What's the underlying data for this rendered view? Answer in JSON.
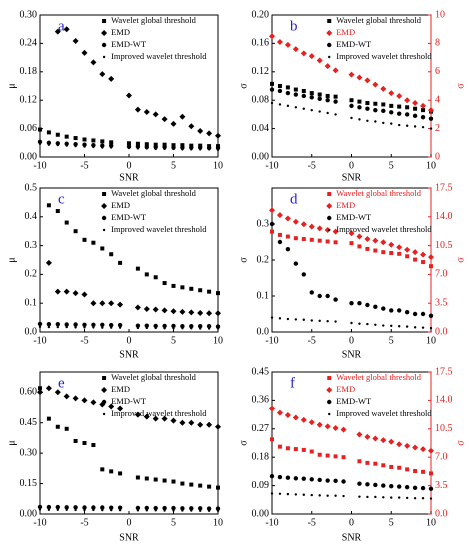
{
  "chart_data": [
    {
      "type": "scatter",
      "label": "a",
      "x_label": "SNR",
      "y_label": "μ",
      "xlim": [
        -10,
        10
      ],
      "xticks": [
        -10,
        -5,
        0,
        5,
        10
      ],
      "ylim": [
        0,
        0.3
      ],
      "yticks": [
        {
          "value": 0,
          "label": "0.00"
        },
        {
          "value": 0.06,
          "label": "0.06"
        },
        {
          "value": 0.12,
          "label": "0.12"
        },
        {
          "value": 0.18,
          "label": "0.18"
        },
        {
          "value": 0.24,
          "label": "0.24"
        },
        {
          "value": 0.3,
          "label": "0.30"
        }
      ],
      "x": [
        -10,
        -9,
        -8,
        -7,
        -6,
        -5,
        -4,
        -3,
        -2,
        -1,
        0,
        1,
        2,
        3,
        4,
        5,
        6,
        7,
        8,
        9,
        10
      ],
      "series": [
        {
          "name": "Wavelet global threshold",
          "color": "#000000",
          "marker": "square",
          "values": [
            0.058,
            0.052,
            0.047,
            0.043,
            0.04,
            0.037,
            0.035,
            0.033,
            0.031,
            null,
            0.029,
            0.028,
            0.027,
            0.026,
            0.026,
            0.025,
            0.025,
            0.024,
            0.024,
            0.023,
            0.023
          ]
        },
        {
          "name": "EMD",
          "color": "#000000",
          "marker": "diamond",
          "values": [
            null,
            null,
            0.265,
            0.27,
            0.245,
            0.22,
            0.2,
            0.175,
            0.165,
            null,
            0.13,
            0.1,
            0.095,
            0.09,
            0.08,
            0.07,
            0.085,
            0.065,
            0.055,
            0.05,
            0.045
          ]
        },
        {
          "name": "EMD-WT",
          "color": "#000000",
          "marker": "circle",
          "values": [
            0.032,
            0.03,
            0.029,
            0.028,
            0.027,
            0.026,
            0.025,
            0.024,
            0.024,
            null,
            0.022,
            0.022,
            0.021,
            0.021,
            0.021,
            0.02,
            0.02,
            0.02,
            0.02,
            0.019,
            0.019
          ]
        },
        {
          "name": "Improved wavelet threshold",
          "color": "#000000",
          "marker": "star",
          "values": [
            0.028,
            0.026,
            0.025,
            0.024,
            0.023,
            0.022,
            0.021,
            0.02,
            0.02,
            null,
            0.019,
            0.018,
            0.018,
            0.017,
            0.017,
            0.017,
            0.016,
            0.016,
            0.016,
            0.016,
            0.015
          ]
        }
      ]
    },
    {
      "type": "scatter",
      "label": "b",
      "x_label": "SNR",
      "y_label": "σ",
      "y2_label": "σ",
      "xlim": [
        -10,
        10
      ],
      "xticks": [
        -10,
        -5,
        0,
        5,
        10
      ],
      "ylim": [
        0,
        0.2
      ],
      "yticks": [
        {
          "value": 0,
          "label": "0.00"
        },
        {
          "value": 0.04,
          "label": "0.04"
        },
        {
          "value": 0.08,
          "label": "0.08"
        },
        {
          "value": 0.12,
          "label": "0.12"
        },
        {
          "value": 0.16,
          "label": "0.16"
        },
        {
          "value": 0.2,
          "label": "0.20"
        }
      ],
      "y2lim": [
        0,
        10
      ],
      "y2ticks": [
        0,
        2,
        4,
        6,
        8,
        10
      ],
      "x": [
        -10,
        -9,
        -8,
        -7,
        -6,
        -5,
        -4,
        -3,
        -2,
        -1,
        0,
        1,
        2,
        3,
        4,
        5,
        6,
        7,
        8,
        9,
        10
      ],
      "series": [
        {
          "name": "Wavelet global threshold",
          "color": "#000000",
          "marker": "square",
          "values": [
            0.103,
            0.1,
            0.098,
            0.095,
            0.093,
            0.09,
            0.088,
            0.086,
            0.085,
            null,
            0.08,
            0.078,
            0.076,
            0.075,
            0.074,
            0.072,
            0.071,
            0.07,
            0.068,
            0.066,
            0.064
          ]
        },
        {
          "name": "EMD",
          "color": "#e8201f",
          "marker": "diamond",
          "axis": "y2",
          "values": [
            8.5,
            8.1,
            7.9,
            7.6,
            7.3,
            7.1,
            6.8,
            6.4,
            6.1,
            null,
            5.8,
            5.6,
            5.4,
            5.1,
            4.8,
            4.5,
            4.3,
            4.0,
            3.8,
            3.6,
            3.3
          ]
        },
        {
          "name": "EMD-WT",
          "color": "#000000",
          "marker": "circle",
          "values": [
            0.095,
            0.093,
            0.09,
            0.088,
            0.086,
            0.084,
            0.082,
            0.08,
            0.078,
            null,
            0.072,
            0.07,
            0.068,
            0.066,
            0.065,
            0.063,
            0.061,
            0.06,
            0.058,
            0.056,
            0.054
          ]
        },
        {
          "name": "Improved wavelet threshold",
          "color": "#000000",
          "marker": "star",
          "values": [
            0.076,
            0.074,
            0.072,
            0.07,
            0.068,
            0.066,
            0.064,
            0.062,
            0.06,
            null,
            0.055,
            0.053,
            0.051,
            0.05,
            0.048,
            0.047,
            0.045,
            0.044,
            0.043,
            0.042,
            0.04
          ]
        }
      ]
    },
    {
      "type": "scatter",
      "label": "c",
      "x_label": "SNR",
      "y_label": "μ",
      "xlim": [
        -10,
        10
      ],
      "xticks": [
        -10,
        -5,
        0,
        5,
        10
      ],
      "ylim": [
        0,
        0.5
      ],
      "yticks": [
        {
          "value": 0,
          "label": "0.0"
        },
        0.1,
        0.2,
        0.3,
        0.4,
        0.5
      ],
      "x": [
        -10,
        -9,
        -8,
        -7,
        -6,
        -5,
        -4,
        -3,
        -2,
        -1,
        0,
        1,
        2,
        3,
        4,
        5,
        6,
        7,
        8,
        9,
        10
      ],
      "series": [
        {
          "name": "Wavelet global threshold",
          "color": "#000000",
          "marker": "square",
          "values": [
            null,
            0.44,
            0.42,
            0.38,
            0.35,
            0.32,
            0.31,
            0.29,
            0.27,
            0.24,
            null,
            0.22,
            0.2,
            0.19,
            0.17,
            0.16,
            0.155,
            0.15,
            0.145,
            0.14,
            0.135
          ]
        },
        {
          "name": "EMD",
          "color": "#000000",
          "marker": "diamond",
          "values": [
            null,
            0.24,
            0.14,
            0.14,
            0.135,
            0.13,
            0.1,
            0.1,
            0.1,
            0.095,
            null,
            0.085,
            0.08,
            0.078,
            0.075,
            0.072,
            0.07,
            0.068,
            0.066,
            0.065,
            0.065
          ]
        },
        {
          "name": "EMD-WT",
          "color": "#000000",
          "marker": "circle",
          "values": [
            0.028,
            0.027,
            0.027,
            0.026,
            0.026,
            0.025,
            0.025,
            0.025,
            0.024,
            0.024,
            null,
            0.022,
            0.022,
            0.021,
            0.021,
            0.021,
            0.02,
            0.02,
            0.02,
            0.02,
            0.019
          ]
        },
        {
          "name": "Improved wavelet threshold",
          "color": "#000000",
          "marker": "star",
          "values": [
            0.018,
            0.017,
            0.017,
            0.017,
            0.016,
            0.016,
            0.016,
            0.015,
            0.015,
            0.015,
            null,
            0.014,
            0.014,
            0.014,
            0.013,
            0.013,
            0.013,
            0.013,
            0.012,
            0.012,
            0.012
          ]
        }
      ]
    },
    {
      "type": "scatter",
      "label": "d",
      "x_label": "SNR",
      "y_label": "σ",
      "y2_label": "σ",
      "xlim": [
        -10,
        10
      ],
      "xticks": [
        -10,
        -5,
        0,
        5,
        10
      ],
      "ylim": [
        0,
        0.4
      ],
      "yticks": [
        {
          "value": 0,
          "label": "0.0"
        },
        0.1,
        0.2,
        0.3
      ],
      "y2lim": [
        0,
        17.5
      ],
      "y2ticks": [
        {
          "value": 0,
          "label": "0.0"
        },
        3.5,
        {
          "value": 7,
          "label": "7.0"
        },
        10.5,
        {
          "value": 14,
          "label": "14.0"
        },
        17.5
      ],
      "x": [
        -10,
        -9,
        -8,
        -7,
        -6,
        -5,
        -4,
        -3,
        -2,
        -1,
        0,
        1,
        2,
        3,
        4,
        5,
        6,
        7,
        8,
        9,
        10
      ],
      "series": [
        {
          "name": "Wavelet global threshold",
          "color": "#e8201f",
          "marker": "square",
          "axis": "y2",
          "values": [
            12.2,
            11.8,
            11.6,
            11.4,
            11.3,
            11.2,
            11.1,
            11.0,
            10.9,
            null,
            10.8,
            10.4,
            10.1,
            9.9,
            9.7,
            9.6,
            9.5,
            9.2,
            8.8,
            8.5,
            8.0
          ]
        },
        {
          "name": "EMD",
          "color": "#e8201f",
          "marker": "diamond",
          "axis": "y2",
          "values": [
            14.8,
            14.2,
            13.8,
            13.4,
            13.1,
            12.8,
            12.6,
            12.4,
            12.2,
            null,
            12.0,
            11.6,
            11.3,
            11.1,
            10.9,
            10.6,
            10.3,
            10.0,
            9.7,
            9.4,
            9.1
          ]
        },
        {
          "name": "EMD-WT",
          "color": "#000000",
          "marker": "circle",
          "values": [
            0.3,
            0.25,
            0.23,
            0.19,
            0.16,
            0.11,
            0.1,
            0.1,
            0.09,
            null,
            0.08,
            0.08,
            0.075,
            0.07,
            0.065,
            0.06,
            0.06,
            0.055,
            0.05,
            0.05,
            0.045
          ]
        },
        {
          "name": "Improved wavelet threshold",
          "color": "#000000",
          "marker": "star",
          "values": [
            0.04,
            0.038,
            0.036,
            0.035,
            0.034,
            0.032,
            0.031,
            0.03,
            0.029,
            null,
            0.025,
            0.023,
            0.022,
            0.02,
            0.018,
            0.017,
            0.016,
            0.015,
            0.013,
            0.012,
            0.011
          ]
        }
      ]
    },
    {
      "type": "scatter",
      "label": "e",
      "x_label": "SNR",
      "y_label": "μ",
      "xlim": [
        -10,
        10
      ],
      "xticks": [
        -10,
        -5,
        0,
        5,
        10
      ],
      "ylim": [
        0,
        0.7
      ],
      "yticks": [
        {
          "value": 0,
          "label": "0.00"
        },
        0.15,
        {
          "value": 0.3,
          "label": "0.30"
        },
        0.45,
        {
          "value": 0.6,
          "label": "0.60"
        }
      ],
      "x": [
        -10,
        -9,
        -8,
        -7,
        -6,
        -5,
        -4,
        -3,
        -2,
        -1,
        0,
        1,
        2,
        3,
        4,
        5,
        6,
        7,
        8,
        9,
        10
      ],
      "series": [
        {
          "name": "Wavelet global threshold",
          "color": "#000000",
          "marker": "square",
          "values": [
            0.62,
            0.47,
            0.43,
            0.42,
            0.36,
            0.35,
            0.34,
            0.22,
            0.21,
            0.2,
            null,
            0.18,
            0.175,
            0.17,
            0.165,
            0.16,
            0.15,
            0.145,
            0.14,
            0.135,
            0.13
          ]
        },
        {
          "name": "EMD",
          "color": "#000000",
          "marker": "diamond",
          "values": [
            0.6,
            0.62,
            0.6,
            0.58,
            0.57,
            0.56,
            0.55,
            0.54,
            0.53,
            0.52,
            null,
            0.49,
            0.48,
            0.47,
            0.47,
            0.46,
            0.45,
            0.45,
            0.44,
            0.44,
            0.43
          ]
        },
        {
          "name": "EMD-WT",
          "color": "#000000",
          "marker": "circle",
          "values": [
            0.035,
            0.034,
            0.034,
            0.033,
            0.033,
            0.032,
            0.032,
            0.032,
            0.031,
            0.031,
            null,
            0.03,
            0.03,
            0.029,
            0.029,
            0.029,
            0.028,
            0.028,
            0.028,
            0.027,
            0.027
          ]
        },
        {
          "name": "Improved wavelet threshold",
          "color": "#000000",
          "marker": "star",
          "values": [
            0.022,
            0.021,
            0.021,
            0.021,
            0.02,
            0.02,
            0.02,
            0.019,
            0.019,
            0.019,
            null,
            0.018,
            0.018,
            0.018,
            0.017,
            0.017,
            0.017,
            0.017,
            0.016,
            0.016,
            0.016
          ]
        }
      ]
    },
    {
      "type": "scatter",
      "label": "f",
      "x_label": "SNR",
      "y_label": "σ",
      "y2_label": "σ",
      "xlim": [
        -10,
        10
      ],
      "xticks": [
        -10,
        -5,
        0,
        5,
        10
      ],
      "ylim": [
        0,
        0.45
      ],
      "yticks": [
        {
          "value": 0,
          "label": "0.00"
        },
        0.09,
        0.18,
        0.27,
        0.36,
        0.45
      ],
      "y2lim": [
        0,
        17.5
      ],
      "y2ticks": [
        {
          "value": 0,
          "label": "0.0"
        },
        3.5,
        {
          "value": 7,
          "label": "7.0"
        },
        10.5,
        {
          "value": 14,
          "label": "14.0"
        },
        17.5
      ],
      "x": [
        -10,
        -9,
        -8,
        -7,
        -6,
        -5,
        -4,
        -3,
        -2,
        -1,
        0,
        1,
        2,
        3,
        4,
        5,
        6,
        7,
        8,
        9,
        10
      ],
      "series": [
        {
          "name": "Wavelet global threshold",
          "color": "#e8201f",
          "marker": "square",
          "axis": "y2",
          "values": [
            9.2,
            8.3,
            8.1,
            8.0,
            7.9,
            7.7,
            7.3,
            7.2,
            7.1,
            7.0,
            null,
            6.5,
            6.3,
            6.2,
            6.0,
            5.8,
            5.7,
            5.5,
            5.3,
            5.2,
            5.0
          ]
        },
        {
          "name": "EMD",
          "color": "#e8201f",
          "marker": "diamond",
          "axis": "y2",
          "values": [
            13.0,
            12.5,
            12.2,
            11.9,
            11.6,
            11.3,
            11.0,
            10.8,
            10.6,
            10.4,
            null,
            9.8,
            9.5,
            9.3,
            9.1,
            8.9,
            8.6,
            8.4,
            8.2,
            8.0,
            7.8
          ]
        },
        {
          "name": "EMD-WT",
          "color": "#000000",
          "marker": "circle",
          "values": [
            0.12,
            0.117,
            0.115,
            0.113,
            0.112,
            0.11,
            0.108,
            0.106,
            0.105,
            0.103,
            null,
            0.096,
            0.094,
            0.092,
            0.09,
            0.088,
            0.087,
            0.085,
            0.083,
            0.082,
            0.08
          ]
        },
        {
          "name": "Improved wavelet threshold",
          "color": "#000000",
          "marker": "star",
          "values": [
            0.065,
            0.064,
            0.063,
            0.062,
            0.061,
            0.06,
            0.059,
            0.058,
            0.058,
            0.057,
            null,
            0.055,
            0.054,
            0.054,
            0.053,
            0.052,
            0.052,
            0.051,
            0.05,
            0.05,
            0.049
          ]
        }
      ]
    }
  ]
}
